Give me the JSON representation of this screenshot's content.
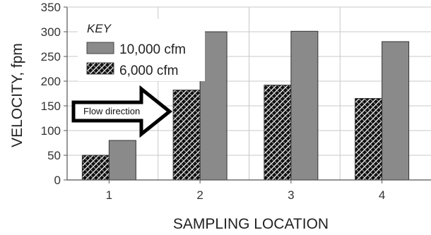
{
  "chart_data": {
    "type": "bar",
    "title": "",
    "xlabel": "SAMPLING LOCATION",
    "ylabel": "VELOCITY, fpm",
    "categories": [
      "1",
      "2",
      "3",
      "4"
    ],
    "ylim": [
      0,
      350
    ],
    "yticks": [
      0,
      50,
      100,
      150,
      200,
      250,
      300,
      350
    ],
    "grid": true,
    "series": [
      {
        "name": "6,000 cfm",
        "values": [
          50,
          182,
          192,
          165
        ],
        "fill": "crosshatch"
      },
      {
        "name": "10,000 cfm",
        "values": [
          80,
          300,
          301,
          280
        ],
        "fill": "#8a8a8a"
      }
    ],
    "legend": {
      "title": "KEY",
      "placement": "top-left",
      "order": [
        "10,000 cfm",
        "6,000 cfm"
      ]
    },
    "annotations": [
      {
        "text": "Flow direction",
        "shape": "right-arrow"
      }
    ]
  },
  "colors": {
    "solid_bar": "#8a8a8a",
    "hatch_dark": "#111111",
    "grid": "#c8c8c8",
    "axis": "#555555"
  }
}
